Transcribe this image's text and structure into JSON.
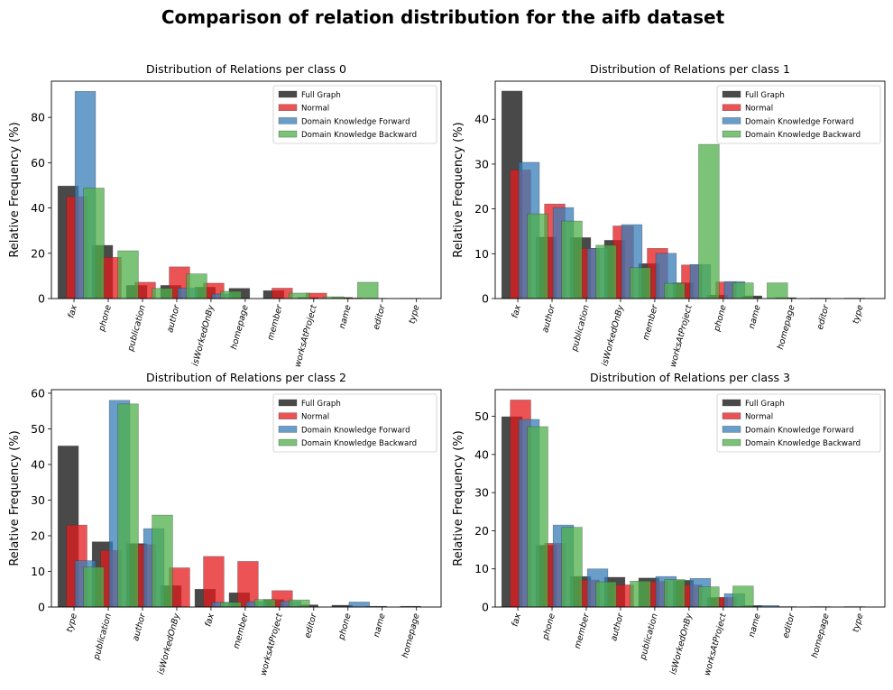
{
  "figure_title": "Comparison of relation distribution for the aifb dataset",
  "legend_labels": [
    "Full Graph",
    "Normal",
    "Domain Knowledge Forward",
    "Domain Knowledge Backward"
  ],
  "colors": {
    "full_graph": "#3a3a3a",
    "normal": "#e41a1c",
    "forward": "#377eb8",
    "backward": "#4daf4a",
    "overlap": "#b22222"
  },
  "chart_data": [
    {
      "type": "bar",
      "title": "Distribution of Relations per class 0",
      "ylabel": "Relative Frequency (%)",
      "ylim": [
        0,
        96
      ],
      "yticks": [
        0,
        20,
        40,
        60,
        80
      ],
      "legend_position": "top-right",
      "categories": [
        "fax",
        "phone",
        "publication",
        "author",
        "isWorkedOnBy",
        "homepage",
        "member",
        "worksAtProject",
        "name",
        "editor",
        "type"
      ],
      "series": [
        {
          "name": "Full Graph",
          "values": [
            49.7,
            23.5,
            5.8,
            5.8,
            5.0,
            4.5,
            3.5,
            0.5,
            0.5,
            0.1,
            0.1
          ]
        },
        {
          "name": "Normal",
          "values": [
            45.0,
            18.2,
            7.2,
            14.0,
            6.8,
            0,
            4.6,
            2.4,
            0.3,
            0,
            0
          ]
        },
        {
          "name": "Domain Knowledge Forward",
          "values": [
            91.5,
            0,
            0,
            4.6,
            2.0,
            0,
            0,
            0,
            0,
            0,
            0
          ]
        },
        {
          "name": "Domain Knowledge Backward",
          "values": [
            48.8,
            21.1,
            4.5,
            10.9,
            3.2,
            0,
            2.4,
            0.8,
            7.2,
            0,
            0
          ]
        }
      ]
    },
    {
      "type": "bar",
      "title": "Distribution of Relations per class 1",
      "ylabel": "Relative Frequency (%)",
      "ylim": [
        0,
        48.5
      ],
      "yticks": [
        0,
        10,
        20,
        30,
        40
      ],
      "legend_position": "top-right",
      "categories": [
        "fax",
        "author",
        "publication",
        "isWorkedOnBy",
        "member",
        "worksAtProject",
        "phone",
        "name",
        "homepage",
        "editor",
        "type"
      ],
      "series": [
        {
          "name": "Full Graph",
          "values": [
            46.3,
            13.7,
            13.6,
            13.0,
            7.8,
            3.5,
            0.8,
            0.6,
            0.2,
            0.1,
            0.1
          ]
        },
        {
          "name": "Normal",
          "values": [
            28.7,
            21.1,
            11.2,
            16.2,
            11.2,
            7.5,
            3.7,
            0,
            0,
            0,
            0
          ]
        },
        {
          "name": "Domain Knowledge Forward",
          "values": [
            30.4,
            20.3,
            11.2,
            16.5,
            10.1,
            7.6,
            3.8,
            0,
            0,
            0,
            0
          ]
        },
        {
          "name": "Domain Knowledge Backward",
          "values": [
            18.9,
            17.3,
            11.9,
            6.9,
            3.4,
            34.4,
            3.5,
            3.5,
            0,
            0,
            0
          ]
        }
      ]
    },
    {
      "type": "bar",
      "title": "Distribution of Relations per class 2",
      "ylabel": "Relative Frequency (%)",
      "ylim": [
        0,
        61
      ],
      "yticks": [
        0,
        10,
        20,
        30,
        40,
        50,
        60
      ],
      "legend_position": "top-right",
      "categories": [
        "type",
        "publication",
        "author",
        "isWorkedOnBy",
        "fax",
        "member",
        "worksAtProject",
        "editor",
        "phone",
        "name",
        "homepage"
      ],
      "series": [
        {
          "name": "Full Graph",
          "values": [
            45.2,
            18.3,
            17.8,
            6.0,
            5.0,
            4.0,
            2.1,
            0.6,
            0.5,
            0.2,
            0.2
          ]
        },
        {
          "name": "Normal",
          "values": [
            23.0,
            15.9,
            17.5,
            11.0,
            14.2,
            12.8,
            4.6,
            0,
            0,
            0,
            0
          ]
        },
        {
          "name": "Domain Knowledge Forward",
          "values": [
            13.0,
            58.0,
            22.0,
            0,
            1.3,
            1.5,
            1.6,
            0,
            1.4,
            0,
            0
          ]
        },
        {
          "name": "Domain Knowledge Backward",
          "values": [
            11.2,
            57.0,
            25.8,
            0,
            1.3,
            2.1,
            2.0,
            0,
            0,
            0,
            0
          ]
        }
      ]
    },
    {
      "type": "bar",
      "title": "Distribution of Relations per class 3",
      "ylabel": "Relative Frequency (%)",
      "ylim": [
        0,
        57
      ],
      "yticks": [
        0,
        10,
        20,
        30,
        40,
        50
      ],
      "legend_position": "top-right",
      "categories": [
        "fax",
        "phone",
        "member",
        "author",
        "publication",
        "isWorkedOnBy",
        "worksAtProject",
        "name",
        "editor",
        "homepage",
        "type"
      ],
      "series": [
        {
          "name": "Full Graph",
          "values": [
            49.9,
            16.2,
            8.0,
            7.8,
            7.6,
            7.0,
            2.5,
            0.4,
            0.1,
            0.1,
            0.1
          ]
        },
        {
          "name": "Normal",
          "values": [
            54.3,
            16.7,
            7.1,
            5.8,
            6.7,
            5.8,
            2.5,
            0,
            0,
            0,
            0
          ]
        },
        {
          "name": "Domain Knowledge Forward",
          "values": [
            49.2,
            21.5,
            10.0,
            0,
            8.0,
            7.5,
            3.5,
            0.4,
            0,
            0,
            0
          ]
        },
        {
          "name": "Domain Knowledge Backward",
          "values": [
            47.3,
            20.9,
            6.6,
            6.8,
            7.2,
            5.3,
            5.5,
            0,
            0,
            0,
            0
          ]
        }
      ]
    }
  ]
}
